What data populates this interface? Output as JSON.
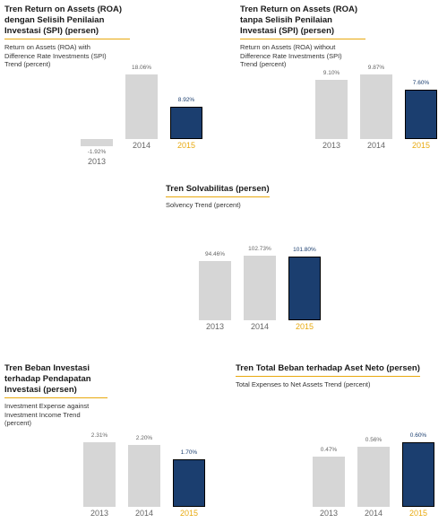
{
  "chart_data": [
    {
      "type": "bar",
      "title": "Tren Return on Assets (ROA) dengan Selisih Penilaian Investasi (SPI) (persen)",
      "subtitle": "Return on Assets (ROA) with Difference Rate Investments (SPI) Trend (percent)",
      "categories": [
        "2013",
        "2014",
        "2015"
      ],
      "values": [
        -1.92,
        18.06,
        8.92
      ],
      "value_labels": [
        "-1.92%",
        "18.06%",
        "8.92%"
      ],
      "colors": [
        "#d6d6d6",
        "#d6d6d6",
        "#1b3e6f"
      ],
      "value_label_colors": [
        "#666666",
        "#666666",
        "#1b3e6f"
      ],
      "category_colors": [
        "#666666",
        "#666666",
        "#e8a90e"
      ]
    },
    {
      "type": "bar",
      "title": "Tren Return on Assets (ROA) tanpa Selisih Penilaian Investasi (SPI) (persen)",
      "subtitle": "Return on Assets (ROA) without Difference Rate Investments (SPI) Trend (percent)",
      "categories": [
        "2013",
        "2014",
        "2015"
      ],
      "values": [
        9.1,
        9.87,
        7.6
      ],
      "value_labels": [
        "9.10%",
        "9.87%",
        "7.60%"
      ],
      "colors": [
        "#d6d6d6",
        "#d6d6d6",
        "#1b3e6f"
      ],
      "value_label_colors": [
        "#666666",
        "#666666",
        "#1b3e6f"
      ],
      "category_colors": [
        "#666666",
        "#666666",
        "#e8a90e"
      ]
    },
    {
      "type": "bar",
      "title": "Tren Solvabilitas (persen)",
      "subtitle": "Solvency Trend (percent)",
      "categories": [
        "2013",
        "2014",
        "2015"
      ],
      "values": [
        94.46,
        102.73,
        101.8
      ],
      "value_labels": [
        "94.46%",
        "102.73%",
        "101.80%"
      ],
      "colors": [
        "#d6d6d6",
        "#d6d6d6",
        "#1b3e6f"
      ],
      "value_label_colors": [
        "#666666",
        "#666666",
        "#1b3e6f"
      ],
      "category_colors": [
        "#666666",
        "#666666",
        "#e8a90e"
      ]
    },
    {
      "type": "bar",
      "title": "Tren Beban Investasi terhadap Pendapatan Investasi (persen)",
      "subtitle": "Investment Expense against Investment Income Trend (percent)",
      "categories": [
        "2013",
        "2014",
        "2015"
      ],
      "values": [
        2.31,
        2.2,
        1.7
      ],
      "value_labels": [
        "2.31%",
        "2.20%",
        "1.70%"
      ],
      "colors": [
        "#d6d6d6",
        "#d6d6d6",
        "#1b3e6f"
      ],
      "value_label_colors": [
        "#666666",
        "#666666",
        "#1b3e6f"
      ],
      "category_colors": [
        "#666666",
        "#666666",
        "#e8a90e"
      ]
    },
    {
      "type": "bar",
      "title": "Tren Total Beban terhadap Aset Neto (persen)",
      "subtitle": "Total Expenses to Net Assets Trend (percent)",
      "categories": [
        "2013",
        "2014",
        "2015"
      ],
      "values": [
        0.47,
        0.56,
        0.6
      ],
      "value_labels": [
        "0.47%",
        "0.56%",
        "0.60%"
      ],
      "colors": [
        "#d6d6d6",
        "#d6d6d6",
        "#1b3e6f"
      ],
      "value_label_colors": [
        "#666666",
        "#666666",
        "#1b3e6f"
      ],
      "category_colors": [
        "#666666",
        "#666666",
        "#e8a90e"
      ]
    }
  ]
}
